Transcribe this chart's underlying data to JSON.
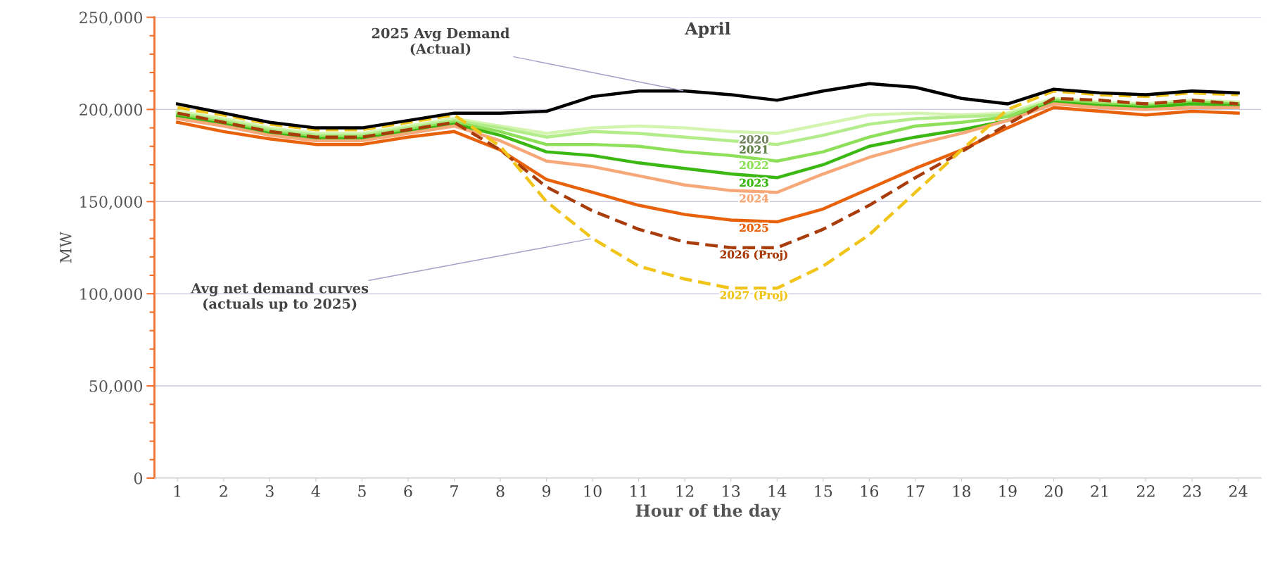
{
  "chart_data": {
    "type": "line",
    "title": "April",
    "xlabel": "Hour of the day",
    "ylabel": "MW",
    "categories": [
      "1",
      "2",
      "3",
      "4",
      "5",
      "6",
      "7",
      "8",
      "9",
      "10",
      "11",
      "12",
      "13",
      "14",
      "15",
      "16",
      "17",
      "18",
      "19",
      "20",
      "21",
      "22",
      "23",
      "24"
    ],
    "ylim": [
      0,
      250000
    ],
    "yticks": [
      {
        "value": 0,
        "label": "0"
      },
      {
        "value": 50000,
        "label": "50,000"
      },
      {
        "value": 100000,
        "label": "100,000"
      },
      {
        "value": 150000,
        "label": "150,000"
      },
      {
        "value": 200000,
        "label": "200,000"
      },
      {
        "value": 250000,
        "label": "250,000"
      }
    ],
    "grid": "y",
    "marker": "none",
    "series": [
      {
        "name": "2020",
        "color": "#d4f5b0",
        "values": [
          199000,
          195000,
          190000,
          187000,
          187000,
          191000,
          195000,
          191000,
          187000,
          190000,
          191000,
          190000,
          188000,
          187000,
          192000,
          197000,
          198000,
          197000,
          198000,
          206000,
          204000,
          203000,
          205000,
          204000
        ]
      },
      {
        "name": "2021",
        "color": "#b3ec8a",
        "values": [
          198000,
          194000,
          189000,
          186000,
          186000,
          190000,
          194000,
          190000,
          185000,
          188000,
          187000,
          185000,
          183000,
          181000,
          186000,
          192000,
          195000,
          196000,
          197000,
          205000,
          203000,
          202000,
          204000,
          203000
        ]
      },
      {
        "name": "2022",
        "color": "#8ee05a",
        "values": [
          197000,
          193000,
          188000,
          185000,
          185000,
          189000,
          193000,
          188000,
          181000,
          181000,
          180000,
          177000,
          175000,
          172000,
          177000,
          185000,
          191000,
          193000,
          196000,
          205000,
          203000,
          202000,
          204000,
          203000
        ]
      },
      {
        "name": "2023",
        "color": "#3cb814",
        "values": [
          196000,
          192000,
          187000,
          184000,
          184000,
          188000,
          192000,
          186000,
          177000,
          175000,
          171000,
          168000,
          165000,
          163000,
          170000,
          180000,
          185000,
          189000,
          194000,
          204000,
          202000,
          201000,
          203000,
          202000
        ]
      },
      {
        "name": "2024",
        "color": "#f7a878",
        "values": [
          195000,
          191000,
          186000,
          183000,
          183000,
          187000,
          191000,
          183000,
          172000,
          169000,
          164000,
          159000,
          156000,
          155000,
          165000,
          174000,
          181000,
          187000,
          194000,
          203000,
          201000,
          200000,
          201000,
          201000
        ]
      },
      {
        "name": "2025",
        "color": "#e8620c",
        "values": [
          193000,
          188000,
          184000,
          181000,
          181000,
          185000,
          188000,
          178000,
          162000,
          155000,
          148000,
          143000,
          140000,
          139000,
          146000,
          157000,
          168000,
          178000,
          190000,
          201000,
          199000,
          197000,
          199000,
          198000
        ]
      },
      {
        "name": "2026 (Proj)",
        "color": "#a83c0a",
        "line_style": "dashed",
        "values": [
          198000,
          193000,
          188000,
          185000,
          185000,
          189000,
          193000,
          178000,
          158000,
          145000,
          135000,
          128000,
          125000,
          125000,
          135000,
          148000,
          163000,
          177000,
          192000,
          206000,
          205000,
          203000,
          205000,
          203000
        ]
      },
      {
        "name": "2027 (Proj)",
        "color": "#f0c419",
        "line_style": "dashed",
        "values": [
          201000,
          197000,
          192000,
          189000,
          189000,
          193000,
          197000,
          180000,
          150000,
          130000,
          115000,
          108000,
          103000,
          103000,
          115000,
          132000,
          155000,
          178000,
          200000,
          210000,
          208000,
          207000,
          209000,
          208000
        ]
      },
      {
        "color": "#000000",
        "values": [
          203000,
          198000,
          193000,
          190000,
          190000,
          194000,
          198000,
          198000,
          199000,
          207000,
          210000,
          210000,
          208000,
          205000,
          210000,
          214000,
          212000,
          206000,
          203000,
          211000,
          209000,
          208000,
          210000,
          209000
        ]
      }
    ],
    "annotations": [
      {
        "text": "2025 Avg Demand\n(Actual)",
        "x": "12",
        "y": 210000
      },
      {
        "text": "Avg net demand curves\n(actuals up to 2025)",
        "x": "10",
        "y": 130000
      }
    ]
  }
}
